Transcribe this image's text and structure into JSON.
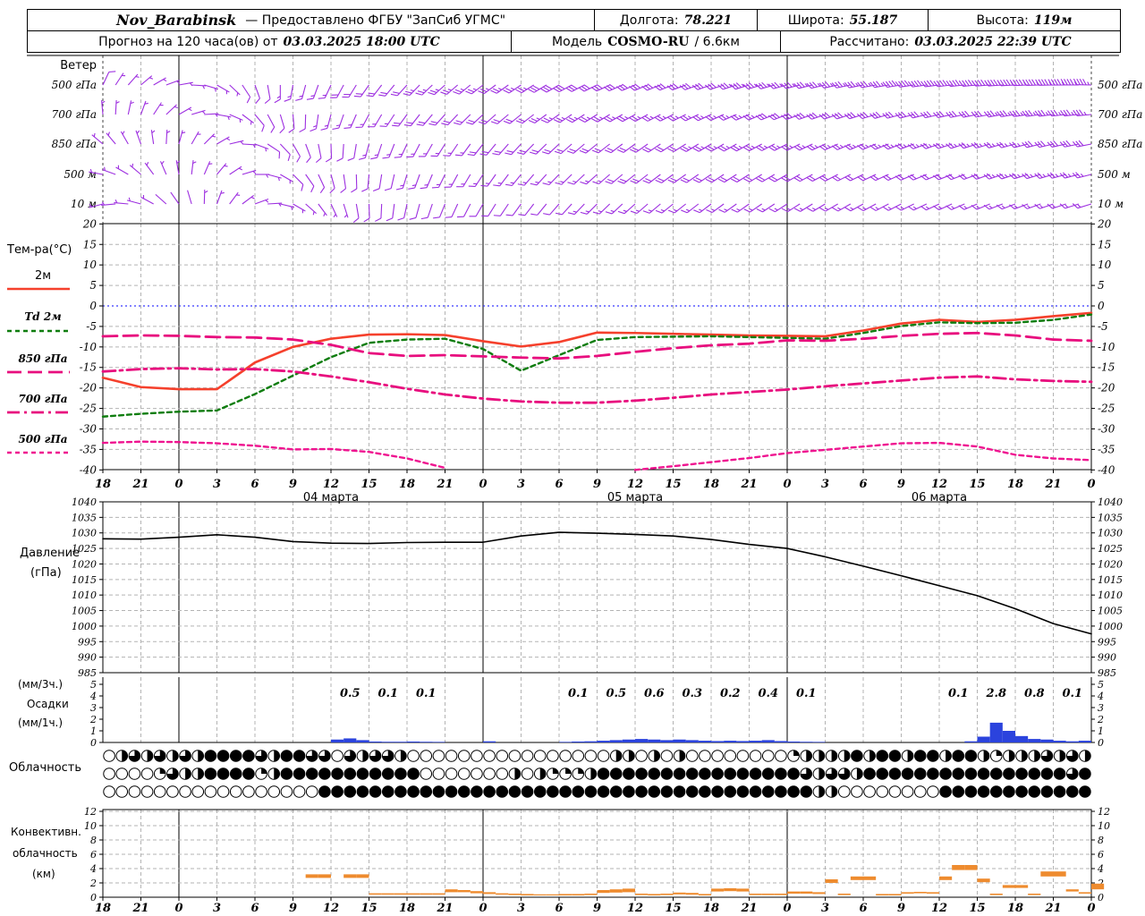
{
  "header": {
    "row1": {
      "station": "Nov_Barabinsk",
      "provider": "—  Предоставлено ФГБУ \"ЗапСиб УГМС\"",
      "lon_label": "Долгота:",
      "lon": "78.221",
      "lat_label": "Широта:",
      "lat": "55.187",
      "alt_label": "Высота:",
      "alt": "119м"
    },
    "row2": {
      "forecast_label": "Прогноз на 120 часа(ов) от",
      "forecast_time": "03.03.2025 18:00 UTC",
      "model_label": "Модель",
      "model_name": "COSMO-RU",
      "model_res": "/ 6.6км",
      "calc_label": "Рассчитано:",
      "calc_time": "03.03.2025 22:39 UTC"
    }
  },
  "panels": {
    "wind_title": "Ветер",
    "temp_title": "Тем-ра(°C)",
    "pressure_title1": "Давление",
    "pressure_title2": "(гПа)",
    "precip_l1": "(мм/3ч.)",
    "precip_l2": "Осадки",
    "precip_l3": "(мм/1ч.)",
    "cloud_title": "Облачность",
    "conv_l1": "Конвективн.",
    "conv_l2": "облачность",
    "conv_l3": "(км)"
  },
  "colors": {
    "wind_barb": "#9d2fe0",
    "temp_2m": "#f5402c",
    "dewpoint": "#0f7d0f",
    "magenta": "#e80e7e",
    "pink_500": "#ef1490",
    "precip_bar": "#2b43dd",
    "convective_bar": "#ee8b2e",
    "pressure_line": "#000000",
    "zero_line": "#3939ff",
    "grid": "#b3b3b3"
  },
  "chart_data": {
    "type": "meteogram",
    "hours_span": 78,
    "step_hours": 3,
    "hour_labels": [
      "18",
      "21",
      "0",
      "3",
      "6",
      "9",
      "12",
      "15",
      "18",
      "21",
      "0",
      "3",
      "6",
      "9",
      "12",
      "15",
      "18",
      "21",
      "0",
      "3",
      "6",
      "9",
      "12",
      "15",
      "18",
      "21",
      "0"
    ],
    "date_labels": [
      {
        "label": "04 марта",
        "t": 18
      },
      {
        "label": "05 марта",
        "t": 42
      },
      {
        "label": "06 марта",
        "t": 66
      }
    ],
    "day_boundaries_t": [
      6,
      30,
      54
    ],
    "wind": {
      "levels": [
        "500 гПа",
        "700 гПа",
        "850 гПа",
        "500 м",
        "10 м"
      ],
      "series": [
        {
          "level": "500 гПа",
          "dir": [
            25,
            50,
            80,
            120,
            160,
            190,
            205,
            215,
            222,
            228,
            232,
            236,
            240,
            244,
            247,
            249,
            251,
            253,
            255,
            257,
            259,
            261,
            263,
            265,
            267,
            269,
            271
          ],
          "spd": [
            8,
            6,
            5,
            6,
            10,
            14,
            17,
            20,
            22,
            24,
            26,
            27,
            28,
            29,
            30,
            31,
            32,
            33,
            34,
            35,
            36,
            38,
            40,
            42,
            44,
            45,
            45
          ]
        },
        {
          "level": "700 гПа",
          "dir": [
            355,
            20,
            60,
            100,
            140,
            175,
            195,
            208,
            216,
            222,
            227,
            231,
            235,
            238,
            241,
            243,
            245,
            247,
            249,
            251,
            253,
            255,
            257,
            259,
            261,
            263,
            265
          ],
          "spd": [
            6,
            5,
            4,
            5,
            8,
            11,
            14,
            16,
            18,
            20,
            21,
            22,
            23,
            24,
            25,
            26,
            26,
            27,
            28,
            28,
            29,
            30,
            31,
            32,
            33,
            34,
            35
          ]
        },
        {
          "level": "850 гПа",
          "dir": [
            310,
            340,
            15,
            60,
            110,
            150,
            178,
            195,
            205,
            212,
            218,
            223,
            227,
            231,
            234,
            237,
            239,
            241,
            243,
            245,
            247,
            249,
            251,
            253,
            255,
            257,
            259
          ],
          "spd": [
            5,
            4,
            4,
            5,
            7,
            9,
            11,
            13,
            15,
            16,
            18,
            19,
            20,
            21,
            22,
            22,
            23,
            23,
            24,
            24,
            25,
            25,
            26,
            26,
            27,
            28,
            28
          ]
        },
        {
          "level": "500 м",
          "dir": [
            280,
            310,
            350,
            40,
            90,
            135,
            165,
            185,
            197,
            206,
            213,
            219,
            224,
            228,
            231,
            234,
            236,
            238,
            240,
            242,
            244,
            246,
            248,
            250,
            252,
            254,
            256
          ],
          "spd": [
            4,
            3,
            3,
            4,
            6,
            8,
            10,
            11,
            13,
            14,
            15,
            16,
            17,
            17,
            18,
            18,
            19,
            19,
            20,
            20,
            21,
            21,
            22,
            22,
            23,
            23,
            24
          ]
        },
        {
          "level": "10 м",
          "dir": [
            255,
            285,
            325,
            20,
            70,
            120,
            155,
            178,
            192,
            202,
            210,
            216,
            221,
            225,
            228,
            231,
            233,
            235,
            237,
            239,
            241,
            243,
            245,
            247,
            249,
            251,
            253
          ],
          "spd": [
            3,
            3,
            2,
            3,
            4,
            6,
            7,
            8,
            9,
            10,
            11,
            12,
            12,
            13,
            13,
            14,
            14,
            14,
            15,
            15,
            15,
            16,
            16,
            16,
            17,
            17,
            17
          ]
        }
      ]
    },
    "temperature": {
      "yticks": [
        20,
        15,
        10,
        5,
        0,
        -5,
        -10,
        -15,
        -20,
        -25,
        -30,
        -35,
        -40
      ],
      "series": [
        {
          "name": "2м",
          "color": "#f5402c",
          "dash": "",
          "width": 2.6,
          "values": [
            -17.5,
            -19.8,
            -20.3,
            -20.3,
            -13.8,
            -10,
            -8,
            -7,
            -6.9,
            -7.1,
            -8.6,
            -9.9,
            -8.8,
            -6.5,
            -6.6,
            -6.8,
            -7,
            -7.2,
            -7.3,
            -7.4,
            -6,
            -4.3,
            -3.4,
            -3.9,
            -3.4,
            -2.5,
            -1.7
          ]
        },
        {
          "name": "Td  2м",
          "color": "#0f7d0f",
          "dash": "5 4",
          "width": 2.4,
          "values": [
            -27,
            -26.3,
            -25.8,
            -25.5,
            -21.5,
            -17,
            -12.5,
            -9,
            -8.2,
            -8,
            -10.5,
            -15.8,
            -12,
            -8.3,
            -7.6,
            -7.5,
            -7.4,
            -7.6,
            -7.8,
            -8,
            -6.6,
            -4.9,
            -4,
            -4.2,
            -4.1,
            -3.4,
            -2.1
          ]
        },
        {
          "name": "850 гПа",
          "color": "#e80e7e",
          "dash": "16 7",
          "width": 2.8,
          "values": [
            -7.4,
            -7.2,
            -7.3,
            -7.6,
            -7.7,
            -8.2,
            -9.5,
            -11.5,
            -12.2,
            -12,
            -12.3,
            -12.6,
            -12.8,
            -12.2,
            -11.2,
            -10.3,
            -9.6,
            -9.2,
            -8.4,
            -8.5,
            -8,
            -7.3,
            -6.8,
            -6.6,
            -7.2,
            -8.2,
            -8.5
          ]
        },
        {
          "name": "700 гПа",
          "color": "#e80e7e",
          "dash": "14 5 3 5",
          "width": 2.8,
          "values": [
            -16,
            -15.4,
            -15.2,
            -15.5,
            -15.4,
            -16,
            -17.2,
            -18.6,
            -20.2,
            -21.6,
            -22.6,
            -23.3,
            -23.6,
            -23.6,
            -23.1,
            -22.4,
            -21.6,
            -21,
            -20.4,
            -19.6,
            -18.9,
            -18.2,
            -17.5,
            -17.2,
            -17.9,
            -18.3,
            -18.5
          ]
        },
        {
          "name": "500 гПа",
          "color": "#ef1490",
          "dash": "5 4",
          "width": 2.4,
          "values": [
            -33.4,
            -33.1,
            -33.2,
            -33.5,
            -34.1,
            -35,
            -34.9,
            -35.6,
            -37.2,
            -39.5,
            null,
            null,
            null,
            null,
            -40,
            -39.1,
            -38.1,
            -37.1,
            -35.9,
            -35.1,
            -34.3,
            -33.5,
            -33.4,
            -34.3,
            -36.3,
            -37.2,
            -37.6
          ]
        }
      ]
    },
    "pressure": {
      "yticks": [
        1040,
        1035,
        1030,
        1025,
        1020,
        1015,
        1010,
        1005,
        1000,
        995,
        990,
        985
      ],
      "values": [
        1028.1,
        1028.0,
        1028.6,
        1029.4,
        1028.6,
        1027.2,
        1026.7,
        1026.6,
        1026.9,
        1027.0,
        1027.0,
        1029.0,
        1030.2,
        1029.9,
        1029.5,
        1029.0,
        1027.9,
        1026.3,
        1025.0,
        1022.3,
        1019.3,
        1016.2,
        1013.0,
        1009.8,
        1005.6,
        1000.8,
        997.5
      ]
    },
    "precip": {
      "yticks": [
        5,
        4,
        3,
        2,
        1,
        0
      ],
      "three_hour_totals": [
        {
          "t": 18,
          "v": "0.5"
        },
        {
          "t": 21,
          "v": "0.1"
        },
        {
          "t": 24,
          "v": "0.1"
        },
        {
          "t": 36,
          "v": "0.1"
        },
        {
          "t": 39,
          "v": "0.5"
        },
        {
          "t": 42,
          "v": "0.6"
        },
        {
          "t": 45,
          "v": "0.3"
        },
        {
          "t": 48,
          "v": "0.2"
        },
        {
          "t": 51,
          "v": "0.4"
        },
        {
          "t": 54,
          "v": "0.1"
        },
        {
          "t": 66,
          "v": "0.1"
        },
        {
          "t": 69,
          "v": "2.8"
        },
        {
          "t": 72,
          "v": "0.8"
        },
        {
          "t": 75,
          "v": "0.1"
        }
      ],
      "hourly": [
        0,
        0,
        0,
        0,
        0,
        0,
        0,
        0,
        0,
        0,
        0,
        0,
        0,
        0,
        0,
        0,
        0,
        0,
        0.25,
        0.35,
        0.2,
        0.08,
        0.06,
        0.06,
        0.08,
        0.06,
        0.05,
        0,
        0,
        0,
        0.1,
        0,
        0,
        0,
        0,
        0,
        0.05,
        0.08,
        0.1,
        0.15,
        0.2,
        0.25,
        0.3,
        0.25,
        0.2,
        0.25,
        0.2,
        0.15,
        0.12,
        0.15,
        0.12,
        0.15,
        0.2,
        0.12,
        0.08,
        0.06,
        0.05,
        0,
        0,
        0,
        0,
        0,
        0,
        0,
        0,
        0,
        0,
        0,
        0.1,
        0.5,
        1.7,
        1.0,
        0.55,
        0.3,
        0.25,
        0.15,
        0.1,
        0.15,
        0
      ]
    },
    "cloud_rows": [
      "046464648888648866064664000000000000000044040400000000244448488488488424446464",
      "000026448888248888888888800000004042224888888888888888864664888888888888888868",
      "000000000000000008888888888888888888888888888888888888884400000000888888888888"
    ],
    "convective": {
      "yticks": [
        12,
        10,
        8,
        6,
        4,
        2,
        0
      ],
      "hourly_base_top": [
        [
          0,
          0
        ],
        [
          0,
          0
        ],
        [
          0,
          0
        ],
        [
          0,
          0
        ],
        [
          0,
          0
        ],
        [
          0,
          0
        ],
        [
          0,
          0
        ],
        [
          0,
          0
        ],
        [
          0,
          0
        ],
        [
          0,
          0
        ],
        [
          0,
          0
        ],
        [
          0,
          0
        ],
        [
          0,
          0
        ],
        [
          0,
          0
        ],
        [
          0,
          0
        ],
        [
          0,
          0
        ],
        [
          2.7,
          3.2
        ],
        [
          2.7,
          3.2
        ],
        [
          0,
          0
        ],
        [
          2.7,
          3.2
        ],
        [
          2.7,
          3.2
        ],
        [
          0.35,
          0.55
        ],
        [
          0.35,
          0.55
        ],
        [
          0.35,
          0.55
        ],
        [
          0.35,
          0.55
        ],
        [
          0.35,
          0.55
        ],
        [
          0.35,
          0.55
        ],
        [
          0.7,
          1.1
        ],
        [
          0.7,
          1.0
        ],
        [
          0.55,
          0.85
        ],
        [
          0.45,
          0.7
        ],
        [
          0.35,
          0.55
        ],
        [
          0.3,
          0.5
        ],
        [
          0.25,
          0.45
        ],
        [
          0.25,
          0.4
        ],
        [
          0.25,
          0.4
        ],
        [
          0.25,
          0.45
        ],
        [
          0.25,
          0.45
        ],
        [
          0.3,
          0.5
        ],
        [
          0.6,
          1.0
        ],
        [
          0.65,
          1.1
        ],
        [
          0.7,
          1.2
        ],
        [
          0.3,
          0.5
        ],
        [
          0.25,
          0.45
        ],
        [
          0.3,
          0.5
        ],
        [
          0.4,
          0.65
        ],
        [
          0.35,
          0.6
        ],
        [
          0.25,
          0.45
        ],
        [
          0.8,
          1.2
        ],
        [
          0.85,
          1.25
        ],
        [
          0.8,
          1.2
        ],
        [
          0.3,
          0.5
        ],
        [
          0.3,
          0.5
        ],
        [
          0.3,
          0.5
        ],
        [
          0.5,
          0.8
        ],
        [
          0.5,
          0.8
        ],
        [
          0.45,
          0.7
        ],
        [
          2.0,
          2.5
        ],
        [
          0.3,
          0.5
        ],
        [
          2.4,
          2.9
        ],
        [
          2.4,
          2.9
        ],
        [
          0.25,
          0.45
        ],
        [
          0.25,
          0.45
        ],
        [
          0.5,
          0.7
        ],
        [
          0.55,
          0.75
        ],
        [
          0.5,
          0.7
        ],
        [
          2.4,
          2.9
        ],
        [
          3.8,
          4.5
        ],
        [
          3.8,
          4.5
        ],
        [
          2.1,
          2.6
        ],
        [
          0.3,
          0.5
        ],
        [
          1.3,
          1.7
        ],
        [
          1.3,
          1.7
        ],
        [
          0.3,
          0.5
        ],
        [
          2.9,
          3.6
        ],
        [
          2.9,
          3.6
        ],
        [
          0.8,
          1.1
        ],
        [
          0.5,
          0.7
        ],
        [
          1.1,
          1.9
        ]
      ]
    }
  }
}
